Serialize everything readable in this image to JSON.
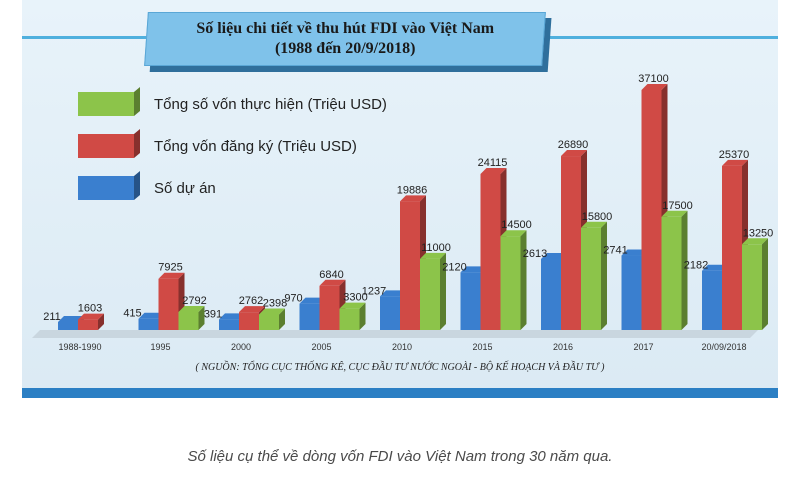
{
  "chart_data": {
    "type": "bar",
    "title": "Số liệu chi tiết về thu hút FDI vào Việt Nam",
    "subtitle": "(1988 đến 20/9/2018)",
    "categories": [
      "1988-1990",
      "1995",
      "2000",
      "2005",
      "2010",
      "2015",
      "2016",
      "2017",
      "20/09/2018"
    ],
    "series": [
      {
        "name": "Số dự án",
        "color": "#3a7fcf",
        "values": [
          211,
          415,
          391,
          970,
          1237,
          2120,
          2613,
          2741,
          2182
        ]
      },
      {
        "name": "Tổng vốn đăng ký (Triệu USD)",
        "color": "#d04a45",
        "values": [
          1603,
          7925,
          2762,
          6840,
          19886,
          24115,
          26890,
          37100,
          25370
        ]
      },
      {
        "name": "Tổng số vốn thực hiện (Triệu USD)",
        "color": "#8cc44a",
        "values": [
          null,
          2792,
          2398,
          3300,
          11000,
          14500,
          15800,
          17500,
          13250
        ]
      }
    ],
    "legend_order": [
      2,
      1,
      0
    ],
    "ylim": [
      0,
      37100
    ],
    "grid": false,
    "legend_position": "top-left",
    "source_note": "( NGUỒN: TỔNG CỤC THỐNG KÊ, CỤC ĐẦU TƯ NƯỚC NGOÀI - BỘ KẾ HOẠCH VÀ ĐẦU TƯ )"
  },
  "caption": "Số liệu cụ thể về dòng vốn FDI vào Việt Nam trong 30 năm qua."
}
